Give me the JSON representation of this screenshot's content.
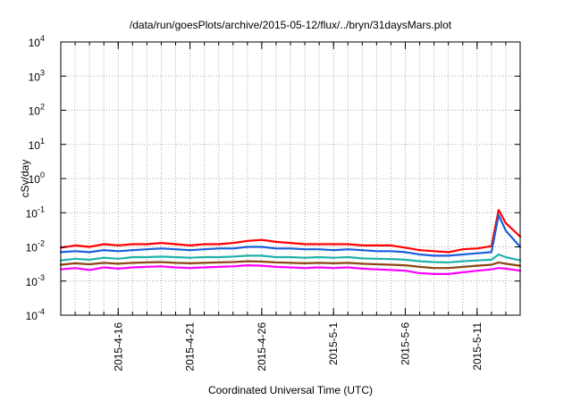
{
  "chart_data": {
    "type": "line",
    "title": "/data/run/goesPlots/archive/2015-05-12/flux/../bryn/31daysMars.plot",
    "xlabel": "Coordinated Universal Time (UTC)",
    "ylabel": "cSv/day",
    "yscale": "log",
    "ylim": [
      0.0001,
      10000
    ],
    "y_ticks": [
      {
        "value": 0.0001,
        "base": "10",
        "exp": "-4"
      },
      {
        "value": 0.001,
        "base": "10",
        "exp": "-3"
      },
      {
        "value": 0.01,
        "base": "10",
        "exp": "-2"
      },
      {
        "value": 0.1,
        "base": "10",
        "exp": "-1"
      },
      {
        "value": 1,
        "base": "10",
        "exp": "0"
      },
      {
        "value": 10,
        "base": "10",
        "exp": "1"
      },
      {
        "value": 100,
        "base": "10",
        "exp": "2"
      },
      {
        "value": 1000,
        "base": "10",
        "exp": "3"
      },
      {
        "value": 10000,
        "base": "10",
        "exp": "4"
      }
    ],
    "xlim": [
      "2015-04-12",
      "2015-05-14"
    ],
    "x_tick_labels": [
      {
        "date": "2015-04-16",
        "label": "2015-4-16"
      },
      {
        "date": "2015-04-21",
        "label": "2015-4-21"
      },
      {
        "date": "2015-04-26",
        "label": "2015-4-26"
      },
      {
        "date": "2015-05-01",
        "label": "2015-5-1"
      },
      {
        "date": "2015-05-06",
        "label": "2015-5-6"
      },
      {
        "date": "2015-05-11",
        "label": "2015-5-11"
      }
    ],
    "grid": true,
    "x": [
      "2015-04-12",
      "2015-04-13",
      "2015-04-14",
      "2015-04-15",
      "2015-04-16",
      "2015-04-17",
      "2015-04-18",
      "2015-04-19",
      "2015-04-20",
      "2015-04-21",
      "2015-04-22",
      "2015-04-23",
      "2015-04-24",
      "2015-04-25",
      "2015-04-26",
      "2015-04-27",
      "2015-04-28",
      "2015-04-29",
      "2015-04-30",
      "2015-05-01",
      "2015-05-02",
      "2015-05-03",
      "2015-05-04",
      "2015-05-05",
      "2015-05-06",
      "2015-05-07",
      "2015-05-08",
      "2015-05-09",
      "2015-05-10",
      "2015-05-11",
      "2015-05-12",
      "2015-05-12 12:00",
      "2015-05-13",
      "2015-05-14"
    ],
    "series": [
      {
        "color": "#ff0000",
        "values": [
          0.0095,
          0.011,
          0.01,
          0.012,
          0.011,
          0.012,
          0.012,
          0.013,
          0.012,
          0.011,
          0.012,
          0.012,
          0.013,
          0.015,
          0.016,
          0.014,
          0.013,
          0.012,
          0.012,
          0.012,
          0.012,
          0.011,
          0.011,
          0.011,
          0.0095,
          0.008,
          0.0075,
          0.007,
          0.0085,
          0.009,
          0.0105,
          0.12,
          0.05,
          0.02
        ]
      },
      {
        "color": "#1a5fd8",
        "values": [
          0.007,
          0.0075,
          0.007,
          0.008,
          0.0075,
          0.008,
          0.0085,
          0.009,
          0.0085,
          0.008,
          0.0085,
          0.009,
          0.009,
          0.01,
          0.01,
          0.009,
          0.009,
          0.0085,
          0.0085,
          0.008,
          0.0085,
          0.008,
          0.0075,
          0.0075,
          0.007,
          0.006,
          0.0055,
          0.0055,
          0.006,
          0.0065,
          0.007,
          0.085,
          0.03,
          0.01
        ]
      },
      {
        "color": "#20b2aa",
        "values": [
          0.004,
          0.0045,
          0.0042,
          0.0048,
          0.0045,
          0.005,
          0.005,
          0.0052,
          0.005,
          0.0048,
          0.005,
          0.005,
          0.0052,
          0.0055,
          0.0055,
          0.005,
          0.005,
          0.0048,
          0.005,
          0.0048,
          0.005,
          0.0046,
          0.0045,
          0.0044,
          0.0042,
          0.0038,
          0.0036,
          0.0035,
          0.0038,
          0.004,
          0.0042,
          0.006,
          0.005,
          0.004
        ]
      },
      {
        "color": "#8b4513",
        "values": [
          0.003,
          0.0033,
          0.0031,
          0.0034,
          0.0032,
          0.0034,
          0.0035,
          0.0036,
          0.0034,
          0.0033,
          0.0034,
          0.0035,
          0.0036,
          0.0038,
          0.0037,
          0.0035,
          0.0034,
          0.0033,
          0.0034,
          0.0033,
          0.0034,
          0.0032,
          0.0031,
          0.003,
          0.0029,
          0.0026,
          0.0024,
          0.0024,
          0.0026,
          0.0028,
          0.003,
          0.0035,
          0.0032,
          0.0028
        ]
      },
      {
        "color": "#ff00ff",
        "values": [
          0.0022,
          0.0024,
          0.0021,
          0.0025,
          0.0023,
          0.0025,
          0.0026,
          0.0027,
          0.0025,
          0.0024,
          0.0025,
          0.0026,
          0.0027,
          0.0029,
          0.0028,
          0.0026,
          0.0025,
          0.0024,
          0.0025,
          0.0024,
          0.0025,
          0.0023,
          0.0022,
          0.0021,
          0.002,
          0.0017,
          0.0016,
          0.0016,
          0.0018,
          0.002,
          0.0022,
          0.0024,
          0.0023,
          0.002
        ]
      }
    ]
  }
}
